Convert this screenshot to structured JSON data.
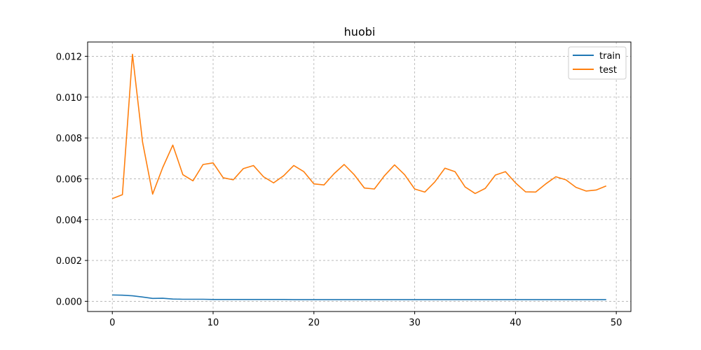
{
  "chart_data": {
    "type": "line",
    "title": "huobi",
    "xlabel": "",
    "ylabel": "",
    "xlim": [
      -2.45,
      51.45
    ],
    "ylim": [
      -0.0005,
      0.0127
    ],
    "grid": true,
    "legend_position": "top-right",
    "x_ticks": [
      0,
      10,
      20,
      30,
      40,
      50
    ],
    "x_tick_labels": [
      "0",
      "10",
      "20",
      "30",
      "40",
      "50"
    ],
    "y_ticks": [
      0.0,
      0.002,
      0.004,
      0.006,
      0.008,
      0.01,
      0.012
    ],
    "y_tick_labels": [
      "0.000",
      "0.002",
      "0.004",
      "0.006",
      "0.008",
      "0.010",
      "0.012"
    ],
    "x": [
      0,
      1,
      2,
      3,
      4,
      5,
      6,
      7,
      8,
      9,
      10,
      11,
      12,
      13,
      14,
      15,
      16,
      17,
      18,
      19,
      20,
      21,
      22,
      23,
      24,
      25,
      26,
      27,
      28,
      29,
      30,
      31,
      32,
      33,
      34,
      35,
      36,
      37,
      38,
      39,
      40,
      41,
      42,
      43,
      44,
      45,
      46,
      47,
      48,
      49
    ],
    "series": [
      {
        "name": "train",
        "color": "#1f77b4",
        "values": [
          0.00031,
          0.0003,
          0.00027,
          0.00021,
          0.00014,
          0.00015,
          0.00011,
          0.0001,
          0.0001,
          0.0001,
          9e-05,
          9e-05,
          9e-05,
          9e-05,
          9e-05,
          9e-05,
          9e-05,
          9e-05,
          8e-05,
          8e-05,
          8e-05,
          8e-05,
          8e-05,
          8e-05,
          8e-05,
          8e-05,
          8e-05,
          8e-05,
          8e-05,
          8e-05,
          8e-05,
          8e-05,
          8e-05,
          8e-05,
          8e-05,
          8e-05,
          8e-05,
          8e-05,
          8e-05,
          8e-05,
          8e-05,
          8e-05,
          8e-05,
          8e-05,
          8e-05,
          8e-05,
          8e-05,
          8e-05,
          8e-05,
          8e-05
        ]
      },
      {
        "name": "test",
        "color": "#ff7f0e",
        "values": [
          0.00503,
          0.00522,
          0.0121,
          0.0078,
          0.00525,
          0.00655,
          0.00765,
          0.0062,
          0.0059,
          0.0067,
          0.00678,
          0.00605,
          0.00595,
          0.0065,
          0.00665,
          0.0061,
          0.0058,
          0.00615,
          0.00665,
          0.00635,
          0.00575,
          0.0057,
          0.00625,
          0.0067,
          0.0062,
          0.00555,
          0.0055,
          0.00615,
          0.00668,
          0.0062,
          0.0055,
          0.00535,
          0.00585,
          0.00652,
          0.00635,
          0.0056,
          0.00528,
          0.00553,
          0.00618,
          0.00635,
          0.0058,
          0.00536,
          0.00535,
          0.00575,
          0.0061,
          0.00595,
          0.00558,
          0.0054,
          0.00545,
          0.00565
        ]
      }
    ]
  }
}
